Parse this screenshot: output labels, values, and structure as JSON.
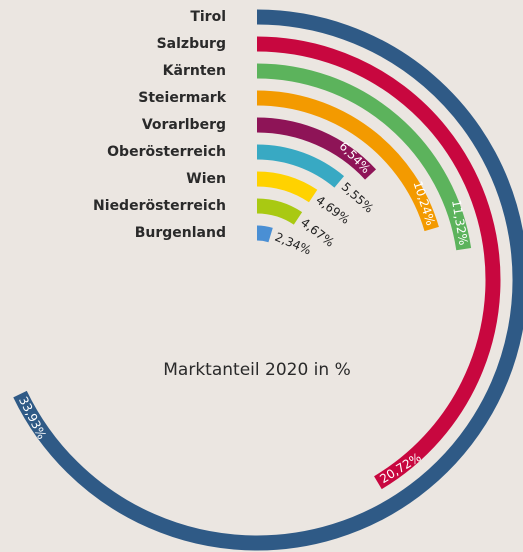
{
  "chart_data": {
    "type": "radial-bar",
    "title": "Marktanteil 2020 in %",
    "categories": [
      "Tirol",
      "Salzburg",
      "Kärnten",
      "Steiermark",
      "Vorarlberg",
      "Oberösterreich",
      "Wien",
      "Niederösterreich",
      "Burgenland"
    ],
    "values": [
      33.93,
      20.72,
      11.32,
      10.24,
      6.54,
      5.55,
      4.69,
      4.67,
      2.34
    ],
    "value_labels": [
      "33,93%",
      "20,72%",
      "11,32%",
      "10,24%",
      "6,54%",
      "5,55%",
      "4,69%",
      "4,67%",
      "2,34%"
    ],
    "colors": [
      "#2f5a86",
      "#c8073f",
      "#5cb35c",
      "#f39a00",
      "#8e1457",
      "#38a9c3",
      "#ffd200",
      "#a9c912",
      "#4a8fd4"
    ],
    "ylim": [
      0,
      50
    ]
  }
}
